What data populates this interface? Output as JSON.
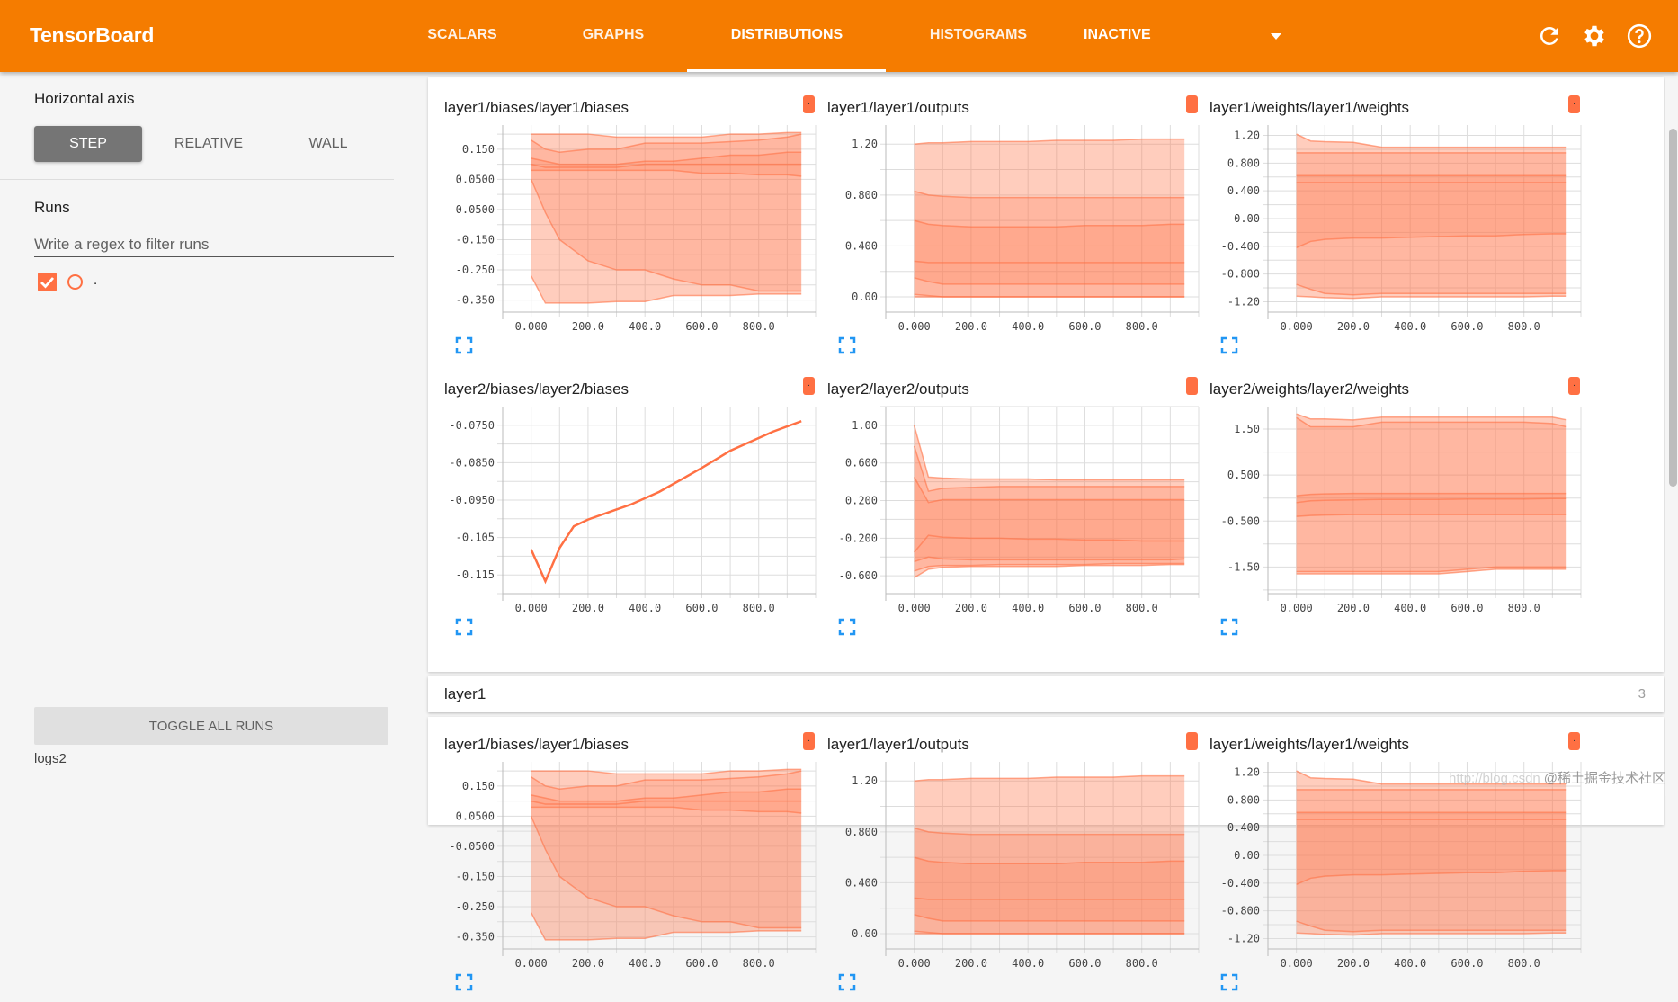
{
  "header": {
    "brand": "TensorBoard",
    "tabs": [
      {
        "label": "SCALARS",
        "active": false
      },
      {
        "label": "GRAPHS",
        "active": false
      },
      {
        "label": "DISTRIBUTIONS",
        "active": true
      },
      {
        "label": "HISTOGRAMS",
        "active": false
      }
    ],
    "inactive_dropdown": "INACTIVE",
    "icons": [
      "refresh-icon",
      "settings-icon",
      "help-icon"
    ]
  },
  "sidebar": {
    "horizontal_axis_label": "Horizontal axis",
    "axis_options": [
      "STEP",
      "RELATIVE",
      "WALL"
    ],
    "selected_axis": "STEP",
    "runs_label": "Runs",
    "regex_placeholder": "Write a regex to filter runs",
    "regex_value": "",
    "runs": [
      {
        "name": ".",
        "checked": true,
        "color": "#ff7043"
      }
    ],
    "toggle_all_label": "TOGGLE ALL RUNS",
    "logdir": "logs2"
  },
  "colors": {
    "header": "#f57c00",
    "run": "#ff7043",
    "expand": "#2196f3"
  },
  "run_legend_label": ".",
  "section": {
    "title": "layer1",
    "count": "3"
  },
  "watermark": {
    "url": "http://blog.csdn",
    "text": "@稀土掘金技术社区"
  },
  "chart_data": [
    {
      "type": "area",
      "title": "layer1/biases/layer1/biases",
      "xlim": [
        -100,
        1000
      ],
      "ylim": [
        -0.39,
        0.23
      ],
      "xticks": [
        "0.000",
        "200.0",
        "400.0",
        "600.0",
        "800.0"
      ],
      "xtick_values": [
        0,
        200,
        400,
        600,
        800
      ],
      "yticks": [
        "0.150",
        "0.0500",
        "-0.0500",
        "-0.150",
        "-0.250",
        "-0.350"
      ],
      "ytick_values": [
        0.15,
        0.05,
        -0.05,
        -0.15,
        -0.25,
        -0.35
      ],
      "x": [
        0,
        50,
        100,
        200,
        300,
        400,
        500,
        600,
        700,
        800,
        900,
        950
      ],
      "percentiles": {
        "max": [
          0.2,
          0.2,
          0.2,
          0.2,
          0.19,
          0.19,
          0.19,
          0.19,
          0.2,
          0.2,
          0.205,
          0.205
        ],
        "p84": [
          0.18,
          0.15,
          0.14,
          0.15,
          0.15,
          0.17,
          0.17,
          0.17,
          0.175,
          0.18,
          0.19,
          0.2
        ],
        "p69": [
          0.12,
          0.11,
          0.1,
          0.1,
          0.1,
          0.11,
          0.11,
          0.12,
          0.13,
          0.13,
          0.14,
          0.14
        ],
        "p50": [
          0.1,
          0.09,
          0.09,
          0.09,
          0.09,
          0.1,
          0.1,
          0.1,
          0.1,
          0.1,
          0.1,
          0.1
        ],
        "p31": [
          0.08,
          0.08,
          0.08,
          0.08,
          0.08,
          0.08,
          0.08,
          0.07,
          0.07,
          0.065,
          0.065,
          0.06
        ],
        "p16": [
          0.05,
          -0.06,
          -0.15,
          -0.22,
          -0.25,
          -0.25,
          -0.28,
          -0.3,
          -0.3,
          -0.32,
          -0.32,
          -0.32
        ],
        "min": [
          -0.27,
          -0.36,
          -0.36,
          -0.36,
          -0.355,
          -0.355,
          -0.335,
          -0.335,
          -0.335,
          -0.33,
          -0.33,
          -0.33
        ]
      }
    },
    {
      "type": "area",
      "title": "layer1/layer1/outputs",
      "xlim": [
        -100,
        1000
      ],
      "ylim": [
        -0.12,
        1.35
      ],
      "xticks": [
        "0.000",
        "200.0",
        "400.0",
        "600.0",
        "800.0"
      ],
      "xtick_values": [
        0,
        200,
        400,
        600,
        800
      ],
      "yticks": [
        "1.20",
        "0.800",
        "0.400",
        "0.00"
      ],
      "ytick_values": [
        1.2,
        0.8,
        0.4,
        0.0
      ],
      "x": [
        0,
        50,
        100,
        200,
        300,
        400,
        500,
        600,
        700,
        800,
        900,
        950
      ],
      "percentiles": {
        "max": [
          1.2,
          1.21,
          1.21,
          1.22,
          1.22,
          1.22,
          1.23,
          1.23,
          1.23,
          1.24,
          1.24,
          1.24
        ],
        "p84": [
          0.83,
          0.8,
          0.79,
          0.78,
          0.78,
          0.78,
          0.78,
          0.78,
          0.78,
          0.78,
          0.78,
          0.78
        ],
        "p69": [
          0.6,
          0.57,
          0.56,
          0.55,
          0.55,
          0.55,
          0.55,
          0.56,
          0.56,
          0.56,
          0.57,
          0.57
        ],
        "p50": [
          0.28,
          0.27,
          0.27,
          0.27,
          0.27,
          0.27,
          0.27,
          0.27,
          0.27,
          0.27,
          0.27,
          0.27
        ],
        "p31": [
          0.15,
          0.12,
          0.1,
          0.1,
          0.1,
          0.1,
          0.1,
          0.1,
          0.1,
          0.1,
          0.1,
          0.1
        ],
        "p16": [
          0.02,
          0.01,
          0.0,
          0.0,
          0.0,
          0.0,
          0.0,
          0.0,
          0.0,
          0.0,
          0.0,
          0.0
        ],
        "min": [
          0.0,
          0.0,
          0.0,
          0.0,
          0.0,
          0.0,
          0.0,
          0.0,
          0.0,
          0.0,
          0.0,
          0.0
        ]
      }
    },
    {
      "type": "area",
      "title": "layer1/weights/layer1/weights",
      "xlim": [
        -100,
        1000
      ],
      "ylim": [
        -1.35,
        1.35
      ],
      "xticks": [
        "0.000",
        "200.0",
        "400.0",
        "600.0",
        "800.0"
      ],
      "xtick_values": [
        0,
        200,
        400,
        600,
        800
      ],
      "yticks": [
        "1.20",
        "0.800",
        "0.400",
        "0.00",
        "-0.400",
        "-0.800",
        "-1.20"
      ],
      "ytick_values": [
        1.2,
        0.8,
        0.4,
        0.0,
        -0.4,
        -0.8,
        -1.2
      ],
      "x": [
        0,
        50,
        100,
        200,
        300,
        400,
        500,
        600,
        700,
        800,
        900,
        950
      ],
      "percentiles": {
        "max": [
          1.22,
          1.12,
          1.11,
          1.1,
          1.03,
          1.03,
          1.03,
          1.03,
          1.03,
          1.03,
          1.03,
          1.03
        ],
        "p84": [
          0.95,
          0.95,
          0.95,
          0.95,
          0.95,
          0.95,
          0.95,
          0.95,
          0.95,
          0.95,
          0.95,
          0.95
        ],
        "p69": [
          0.62,
          0.62,
          0.62,
          0.62,
          0.62,
          0.62,
          0.62,
          0.62,
          0.62,
          0.62,
          0.62,
          0.62
        ],
        "p50": [
          0.52,
          0.52,
          0.52,
          0.52,
          0.52,
          0.52,
          0.52,
          0.52,
          0.52,
          0.52,
          0.52,
          0.52
        ],
        "p31": [
          -0.42,
          -0.33,
          -0.3,
          -0.28,
          -0.28,
          -0.27,
          -0.26,
          -0.25,
          -0.25,
          -0.23,
          -0.22,
          -0.22
        ],
        "p16": [
          -0.95,
          -1.02,
          -1.08,
          -1.1,
          -1.08,
          -1.08,
          -1.08,
          -1.08,
          -1.08,
          -1.08,
          -1.08,
          -1.08
        ],
        "min": [
          -1.12,
          -1.13,
          -1.14,
          -1.15,
          -1.13,
          -1.13,
          -1.13,
          -1.13,
          -1.13,
          -1.13,
          -1.12,
          -1.12
        ]
      }
    },
    {
      "type": "line",
      "title": "layer2/biases/layer2/biases",
      "xlim": [
        -100,
        1000
      ],
      "ylim": [
        -0.12,
        -0.07
      ],
      "xticks": [
        "0.000",
        "200.0",
        "400.0",
        "600.0",
        "800.0"
      ],
      "xtick_values": [
        0,
        200,
        400,
        600,
        800
      ],
      "yticks": [
        "-0.0750",
        "-0.0850",
        "-0.0950",
        "-0.105",
        "-0.115"
      ],
      "ytick_values": [
        -0.075,
        -0.085,
        -0.095,
        -0.105,
        -0.115
      ],
      "x": [
        0,
        50,
        100,
        150,
        200,
        300,
        350,
        450,
        600,
        700,
        850,
        950
      ],
      "y": [
        -0.1082,
        -0.1167,
        -0.1078,
        -0.102,
        -0.1002,
        -0.0975,
        -0.0962,
        -0.0928,
        -0.0864,
        -0.0818,
        -0.0767,
        -0.0739
      ]
    },
    {
      "type": "area",
      "title": "layer2/layer2/outputs",
      "xlim": [
        -100,
        1000
      ],
      "ylim": [
        -0.79,
        1.2
      ],
      "xticks": [
        "0.000",
        "200.0",
        "400.0",
        "600.0",
        "800.0"
      ],
      "xtick_values": [
        0,
        200,
        400,
        600,
        800
      ],
      "yticks": [
        "1.00",
        "0.600",
        "0.200",
        "-0.200",
        "-0.600"
      ],
      "ytick_values": [
        1.0,
        0.6,
        0.2,
        -0.2,
        -0.6
      ],
      "x": [
        0,
        50,
        100,
        200,
        300,
        400,
        500,
        600,
        700,
        800,
        900,
        950
      ],
      "percentiles": {
        "max": [
          1.0,
          0.45,
          0.44,
          0.43,
          0.43,
          0.43,
          0.42,
          0.42,
          0.42,
          0.42,
          0.42,
          0.42
        ],
        "p84": [
          0.78,
          0.3,
          0.33,
          0.34,
          0.35,
          0.35,
          0.35,
          0.35,
          0.35,
          0.35,
          0.35,
          0.35
        ],
        "p69": [
          0.45,
          0.18,
          0.21,
          0.21,
          0.21,
          0.21,
          0.21,
          0.21,
          0.21,
          0.21,
          0.21,
          0.21
        ],
        "p50": [
          -0.35,
          -0.17,
          -0.19,
          -0.2,
          -0.2,
          -0.21,
          -0.21,
          -0.22,
          -0.22,
          -0.23,
          -0.23,
          -0.23
        ],
        "p31": [
          -0.45,
          -0.4,
          -0.42,
          -0.43,
          -0.43,
          -0.43,
          -0.43,
          -0.43,
          -0.43,
          -0.43,
          -0.43,
          -0.42
        ],
        "p16": [
          -0.55,
          -0.5,
          -0.49,
          -0.49,
          -0.48,
          -0.48,
          -0.48,
          -0.48,
          -0.47,
          -0.47,
          -0.47,
          -0.47
        ],
        "min": [
          -0.62,
          -0.53,
          -0.51,
          -0.5,
          -0.5,
          -0.5,
          -0.5,
          -0.49,
          -0.49,
          -0.49,
          -0.48,
          -0.48
        ]
      }
    },
    {
      "type": "area",
      "title": "layer2/weights/layer2/weights",
      "xlim": [
        -100,
        1000
      ],
      "ylim": [
        -2.08,
        1.99
      ],
      "xticks": [
        "0.000",
        "200.0",
        "400.0",
        "600.0",
        "800.0"
      ],
      "xtick_values": [
        0,
        200,
        400,
        600,
        800
      ],
      "yticks": [
        "1.50",
        "0.500",
        "-0.500",
        "-1.50"
      ],
      "ytick_values": [
        1.5,
        0.5,
        -0.5,
        -1.5
      ],
      "x": [
        0,
        50,
        100,
        200,
        300,
        400,
        500,
        600,
        700,
        800,
        900,
        950
      ],
      "percentiles": {
        "max": [
          1.83,
          1.72,
          1.72,
          1.7,
          1.76,
          1.76,
          1.76,
          1.76,
          1.76,
          1.76,
          1.76,
          1.7
        ],
        "p84": [
          1.75,
          1.55,
          1.55,
          1.55,
          1.65,
          1.65,
          1.65,
          1.65,
          1.65,
          1.65,
          1.62,
          1.55
        ],
        "p69": [
          0.05,
          0.08,
          0.09,
          0.1,
          0.1,
          0.1,
          0.1,
          0.1,
          0.1,
          0.1,
          0.1,
          0.1
        ],
        "p50": [
          -0.1,
          -0.06,
          -0.05,
          -0.04,
          -0.03,
          -0.03,
          -0.03,
          -0.02,
          -0.02,
          -0.02,
          -0.01,
          -0.01
        ],
        "p31": [
          -0.4,
          -0.38,
          -0.37,
          -0.36,
          -0.36,
          -0.36,
          -0.36,
          -0.36,
          -0.36,
          -0.36,
          -0.36,
          -0.36
        ],
        "p16": [
          -1.6,
          -1.6,
          -1.6,
          -1.6,
          -1.6,
          -1.6,
          -1.6,
          -1.55,
          -1.5,
          -1.5,
          -1.5,
          -1.5
        ],
        "min": [
          -1.65,
          -1.65,
          -1.65,
          -1.65,
          -1.65,
          -1.65,
          -1.65,
          -1.6,
          -1.55,
          -1.55,
          -1.55,
          -1.55
        ]
      }
    }
  ]
}
